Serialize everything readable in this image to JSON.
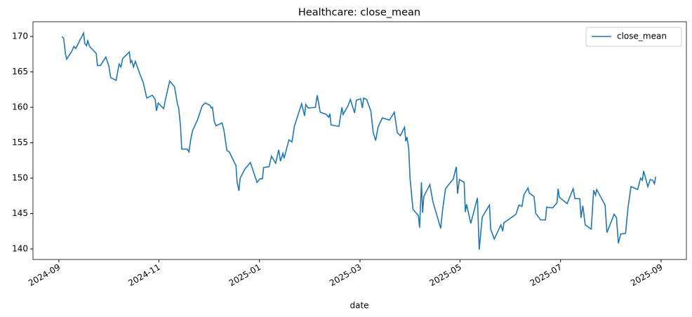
{
  "chart_data": {
    "type": "line",
    "title": "Healthcare: close_mean",
    "xlabel": "date",
    "x": [
      2024.672,
      2024.675,
      2024.678,
      2024.68,
      2024.689,
      2024.692,
      2024.695,
      2024.708,
      2024.71,
      2024.713,
      2024.715,
      2024.718,
      2024.729,
      2024.731,
      2024.736,
      2024.745,
      2024.75,
      2024.753,
      2024.762,
      2024.767,
      2024.77,
      2024.773,
      2024.784,
      2024.786,
      2024.788,
      2024.791,
      2024.794,
      2024.801,
      2024.807,
      2024.813,
      2024.822,
      2024.827,
      2024.829,
      2024.832,
      2024.841,
      2024.844,
      2024.851,
      2024.859,
      2024.864,
      2024.866,
      2024.869,
      2024.871,
      2024.88,
      2024.883,
      2024.886,
      2024.889,
      2024.897,
      2024.905,
      2024.91,
      2024.918,
      2024.92,
      2024.922,
      2024.925,
      2024.928,
      2024.938,
      2024.941,
      2024.946,
      2024.95,
      2024.959,
      2024.961,
      2024.963,
      2024.966,
      2024.968,
      2024.976,
      2024.985,
      2024.996,
      2025.001,
      2025.005,
      2025.007,
      2025.016,
      2025.02,
      2025.027,
      2025.032,
      2025.035,
      2025.039,
      2025.041,
      2025.049,
      2025.054,
      2025.058,
      2025.07,
      2025.075,
      2025.077,
      2025.081,
      2025.093,
      2025.096,
      2025.101,
      2025.111,
      2025.115,
      2025.117,
      2025.119,
      2025.132,
      2025.137,
      2025.139,
      2025.147,
      2025.151,
      2025.158,
      2025.161,
      2025.168,
      2025.171,
      2025.173,
      2025.178,
      2025.185,
      2025.189,
      2025.193,
      2025.197,
      2025.204,
      2025.216,
      2025.224,
      2025.229,
      2025.234,
      2025.241,
      2025.243,
      2025.245,
      2025.248,
      2025.25,
      2025.255,
      2025.264,
      2025.266,
      2025.269,
      2025.271,
      2025.273,
      2025.283,
      2025.288,
      2025.301,
      2025.304,
      2025.309,
      2025.322,
      2025.327,
      2025.329,
      2025.332,
      2025.34,
      2025.342,
      2025.344,
      2025.351,
      2025.362,
      2025.365,
      2025.37,
      2025.382,
      2025.384,
      2025.39,
      2025.401,
      2025.404,
      2025.406,
      2025.426,
      2025.431,
      2025.436,
      2025.439,
      2025.446,
      2025.448,
      2025.456,
      2025.459,
      2025.467,
      2025.475,
      2025.477,
      2025.487,
      2025.494,
      2025.496,
      2025.498,
      2025.511,
      2025.521,
      2025.524,
      2025.532,
      2025.534,
      2025.537,
      2025.541,
      2025.551,
      2025.555,
      2025.558,
      2025.56,
      2025.574,
      2025.577,
      2025.589,
      2025.593,
      2025.596,
      2025.6,
      2025.608,
      2025.612,
      2025.617,
      2025.628,
      2025.633,
      2025.636,
      2025.638,
      2025.645,
      2025.649,
      2025.653,
      2025.656,
      2025.658
    ],
    "series": [
      {
        "name": "close_mean",
        "color": "#1f77b4",
        "values": [
          170.0,
          169.7,
          167.5,
          166.8,
          168.0,
          168.6,
          168.3,
          170.5,
          169.0,
          168.7,
          169.4,
          168.6,
          167.6,
          165.9,
          165.9,
          167.1,
          165.8,
          164.2,
          163.8,
          166.1,
          165.7,
          166.9,
          167.8,
          166.3,
          166.6,
          165.7,
          166.5,
          164.8,
          163.5,
          161.3,
          161.7,
          161.1,
          159.5,
          160.6,
          159.8,
          161.1,
          163.7,
          162.9,
          160.4,
          159.9,
          157.3,
          154.1,
          154.1,
          153.7,
          155.5,
          156.7,
          158.2,
          160.2,
          160.6,
          160.3,
          159.9,
          160.0,
          158.0,
          157.4,
          157.8,
          156.8,
          153.9,
          153.7,
          152.1,
          151.8,
          149.4,
          148.2,
          150.0,
          151.3,
          152.2,
          149.4,
          149.9,
          149.9,
          151.5,
          151.6,
          153.1,
          152.1,
          154.0,
          152.4,
          153.5,
          152.8,
          155.4,
          155.1,
          157.3,
          160.5,
          158.8,
          160.4,
          159.9,
          160.0,
          161.7,
          159.3,
          159.0,
          158.6,
          159.1,
          157.5,
          157.3,
          160.0,
          159.0,
          160.2,
          161.1,
          159.2,
          161.0,
          161.2,
          159.9,
          161.3,
          161.1,
          159.5,
          156.4,
          155.3,
          157.2,
          158.5,
          158.2,
          159.3,
          156.4,
          156.0,
          157.2,
          155.2,
          155.8,
          154.1,
          150.1,
          145.6,
          144.7,
          143.0,
          149.4,
          145.1,
          147.4,
          149.1,
          146.7,
          142.9,
          145.4,
          148.5,
          149.9,
          151.6,
          147.8,
          149.8,
          149.4,
          145.2,
          146.3,
          143.6,
          147.2,
          139.9,
          144.5,
          146.2,
          142.8,
          141.4,
          143.4,
          142.5,
          143.7,
          144.9,
          146.2,
          146.0,
          147.6,
          148.6,
          147.9,
          147.4,
          145.0,
          144.1,
          144.1,
          145.9,
          145.8,
          146.5,
          148.5,
          147.3,
          146.4,
          148.5,
          147.1,
          147.1,
          144.4,
          146.1,
          143.4,
          142.8,
          148.3,
          147.6,
          148.4,
          146.2,
          142.3,
          144.9,
          144.4,
          140.8,
          142.1,
          142.2,
          145.8,
          148.8,
          148.4,
          150.0,
          149.7,
          151.0,
          148.8,
          149.8,
          149.7,
          149.2,
          150.2
        ]
      }
    ],
    "xlim": [
      2024.624,
      2025.709
    ],
    "xticks": [
      {
        "value": 2024.667,
        "label": "2024-09"
      },
      {
        "value": 2024.833,
        "label": "2024-11"
      },
      {
        "value": 2025.0,
        "label": "2025-01"
      },
      {
        "value": 2025.167,
        "label": "2025-03"
      },
      {
        "value": 2025.333,
        "label": "2025-05"
      },
      {
        "value": 2025.5,
        "label": "2025-07"
      },
      {
        "value": 2025.667,
        "label": "2025-09"
      }
    ],
    "ylim": [
      138.51,
      172.08
    ],
    "yticks": [
      140,
      145,
      150,
      155,
      160,
      165,
      170
    ],
    "legend": "upper right"
  }
}
